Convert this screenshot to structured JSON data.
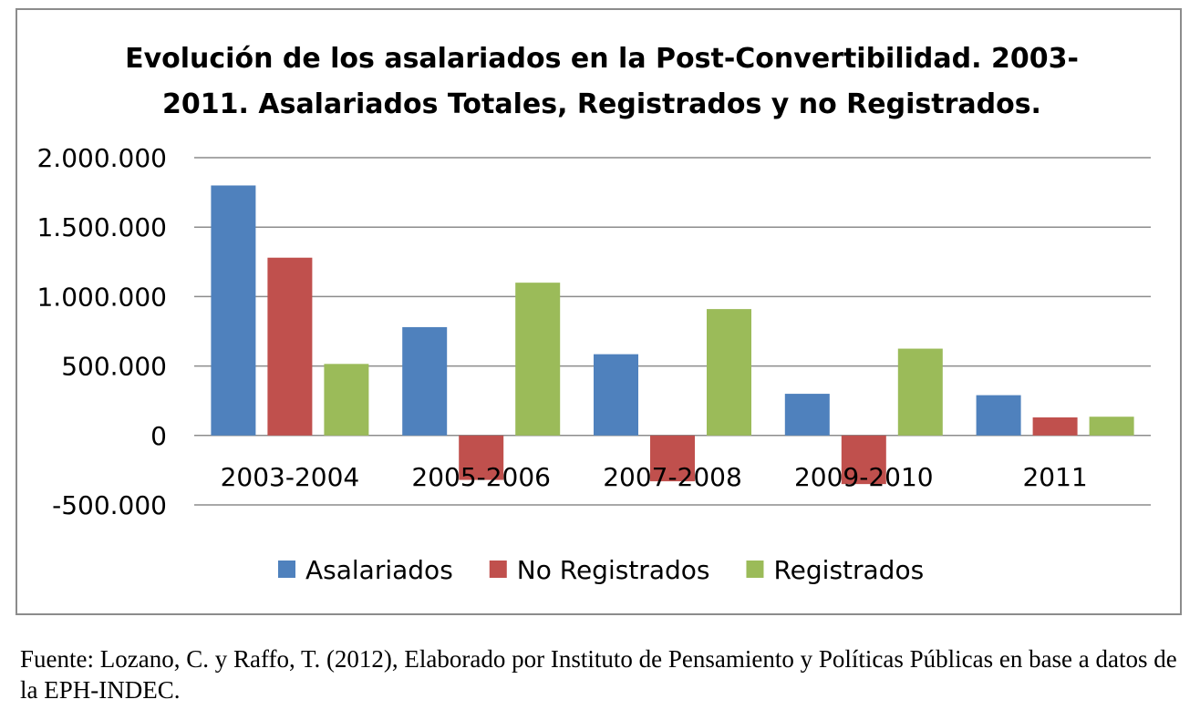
{
  "chart_data": {
    "type": "bar",
    "title": "Evolución de los asalariados en la Post-Convertibilidad. 2003-2011. Asalariados Totales, Registrados y no Registrados.",
    "categories": [
      "2003-2004",
      "2005-2006",
      "2007-2008",
      "2009-2010",
      "2011"
    ],
    "series": [
      {
        "name": "Asalariados",
        "color": "#4f81bd",
        "values": [
          1800000,
          780000,
          585000,
          300000,
          290000
        ]
      },
      {
        "name": "No Registrados",
        "color": "#c0504d",
        "values": [
          1280000,
          -320000,
          -330000,
          -350000,
          130000
        ]
      },
      {
        "name": "Registrados",
        "color": "#9bbb59",
        "values": [
          515000,
          1100000,
          910000,
          625000,
          135000
        ]
      }
    ],
    "y_ticks": [
      "2.000.000",
      "1.500.000",
      "1.000.000",
      "500.000",
      "0",
      "-500.000"
    ],
    "ylim": [
      -500000,
      2000000
    ],
    "legend_position": "bottom",
    "grid": true
  },
  "caption": "Fuente: Lozano, C. y Raffo, T. (2012), Elaborado por Instituto de Pensamiento y Políticas Públicas en base a datos de la EPH-INDEC."
}
